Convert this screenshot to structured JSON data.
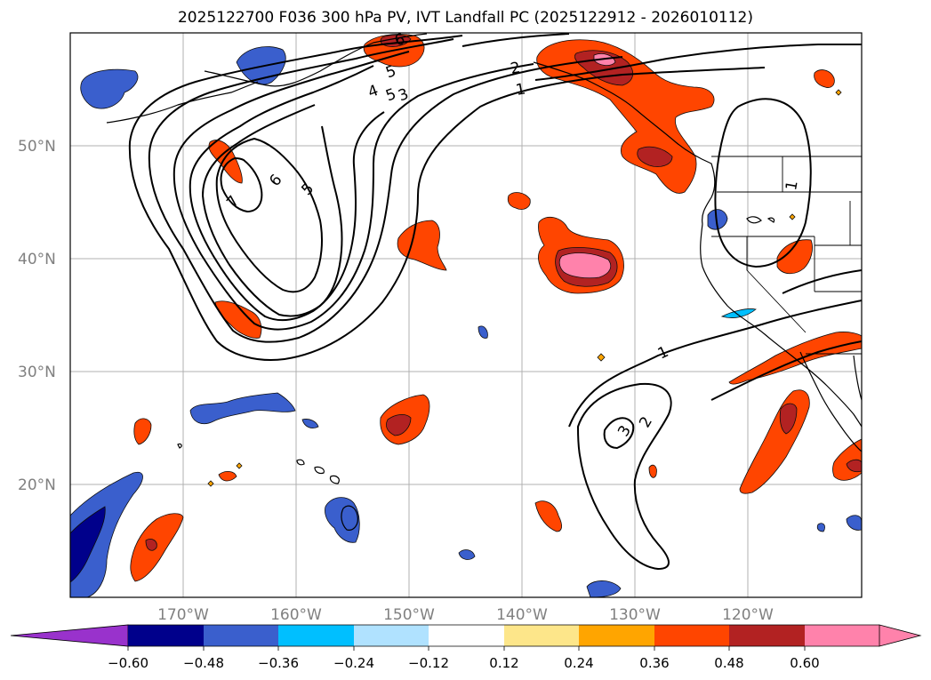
{
  "title": "2025122700 F036 300 hPa PV, IVT Landfall PC (2025122912 - 2026010112)",
  "map": {
    "lat_ticks": [
      "50°N",
      "40°N",
      "30°N",
      "20°N"
    ],
    "lon_ticks": [
      "170°W",
      "160°W",
      "150°W",
      "140°W",
      "130°W",
      "120°W"
    ],
    "lat_range": [
      10,
      60
    ],
    "lon_range": [
      -180,
      -110
    ]
  },
  "contour_labels": [
    "7",
    "6",
    "5",
    "5",
    "4",
    "3",
    "2",
    "1",
    "6",
    "5",
    "1",
    "1",
    "2",
    "3"
  ],
  "colorbar": {
    "ticks": [
      "−0.60",
      "−0.48",
      "−0.36",
      "−0.24",
      "−0.12",
      "0.12",
      "0.24",
      "0.36",
      "0.48",
      "0.60"
    ],
    "colors": [
      "#9932cc",
      "#00008b",
      "#3a5fcd",
      "#00bfff",
      "#b0e2ff",
      "#ffffff",
      "#fde68a",
      "#ffa500",
      "#ff4500",
      "#b22222",
      "#ff82ab",
      "#ff82ab"
    ]
  }
}
